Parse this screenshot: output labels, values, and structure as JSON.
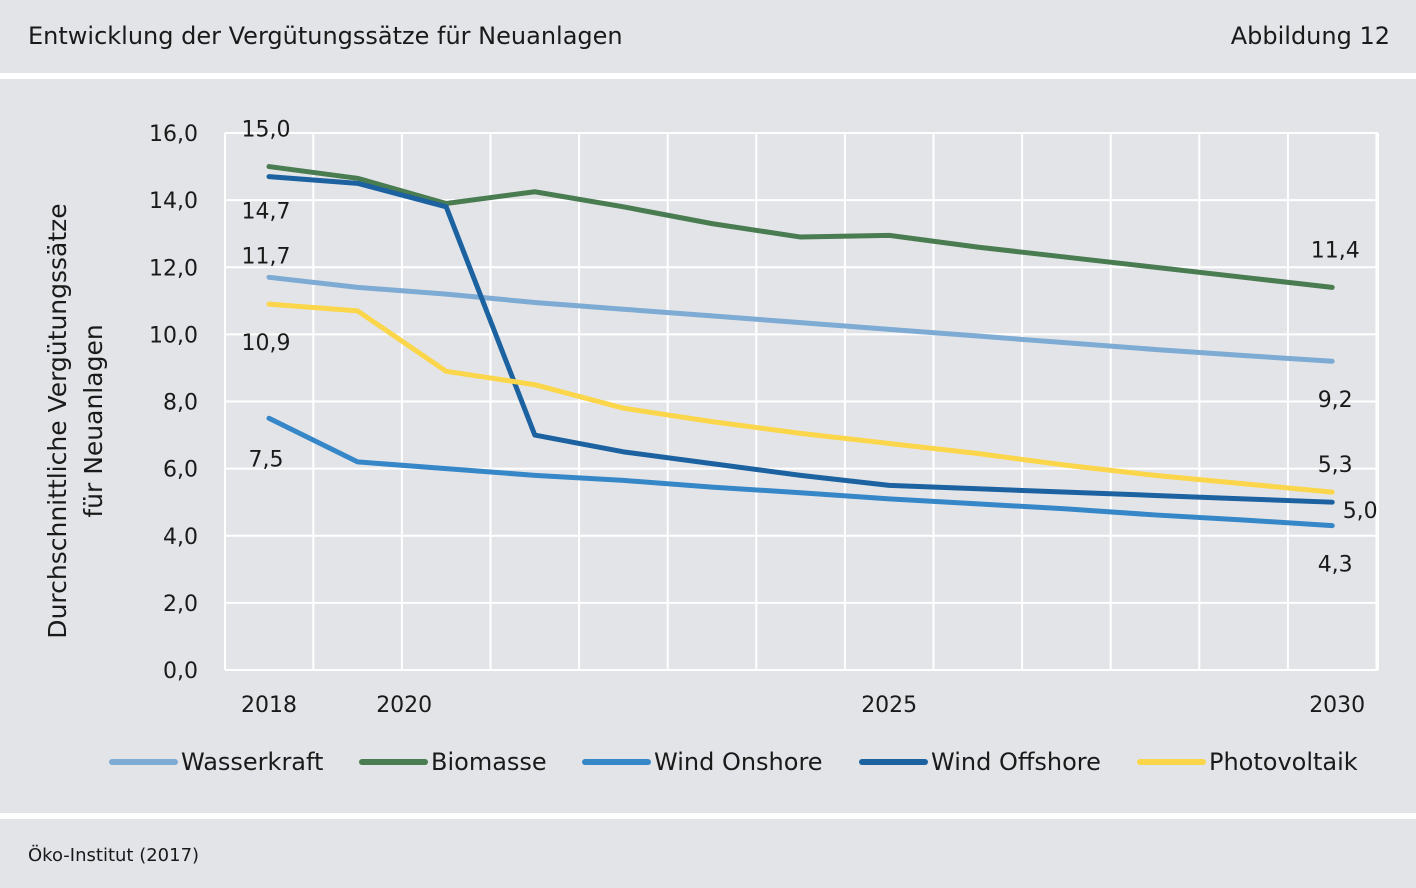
{
  "header": {
    "title": "Entwicklung der Vergütungssätze für Neuanlagen",
    "figure_label": "Abbildung 12"
  },
  "footer": {
    "source": "Öko-Institut (2017)"
  },
  "chart_data": {
    "type": "line",
    "ylabel_line1": "Durchschnittliche Vergütungssätze",
    "ylabel_line2": "für Neuanlagen",
    "x": [
      2018,
      2019,
      2020,
      2021,
      2022,
      2023,
      2024,
      2025,
      2026,
      2027,
      2028,
      2029,
      2030
    ],
    "xticks": [
      2018,
      2020,
      2025,
      2030
    ],
    "ylim": [
      0,
      16
    ],
    "yticks": [
      "0,0",
      "2,0",
      "4,0",
      "6,0",
      "8,0",
      "10,0",
      "12,0",
      "14,0",
      "16,0"
    ],
    "grid": true,
    "legend_position": "bottom",
    "series": [
      {
        "name": "Wasserkraft",
        "color": "#7eabd3",
        "values": [
          11.7,
          11.4,
          11.2,
          10.95,
          10.75,
          10.55,
          10.35,
          10.15,
          9.95,
          9.75,
          9.55,
          9.37,
          9.2
        ],
        "start_label": "11,7",
        "end_label": "9,2"
      },
      {
        "name": "Biomasse",
        "color": "#4a7c52",
        "values": [
          15.0,
          14.65,
          13.9,
          14.25,
          13.8,
          13.3,
          12.9,
          12.95,
          12.6,
          12.3,
          12.0,
          11.7,
          11.4
        ],
        "start_label": "15,0",
        "end_label": "11,4"
      },
      {
        "name": "Wind Onshore",
        "color": "#3687c8",
        "values": [
          7.5,
          6.2,
          6.0,
          5.8,
          5.65,
          5.45,
          5.28,
          5.1,
          4.95,
          4.8,
          4.62,
          4.47,
          4.3
        ],
        "start_label": "7,5",
        "end_label": "4,3"
      },
      {
        "name": "Wind Offshore",
        "color": "#1c62a0",
        "values": [
          14.7,
          14.5,
          13.8,
          7.0,
          6.5,
          6.15,
          5.8,
          5.5,
          5.4,
          5.3,
          5.2,
          5.1,
          5.0
        ],
        "start_label": "14,7",
        "end_label": "5,0"
      },
      {
        "name": "Photovoltaik",
        "color": "#fbd64a",
        "values": [
          10.9,
          10.7,
          8.9,
          8.5,
          7.8,
          7.4,
          7.05,
          6.75,
          6.45,
          6.1,
          5.8,
          5.55,
          5.3
        ],
        "start_label": "10,9",
        "end_label": "5,3"
      }
    ]
  }
}
